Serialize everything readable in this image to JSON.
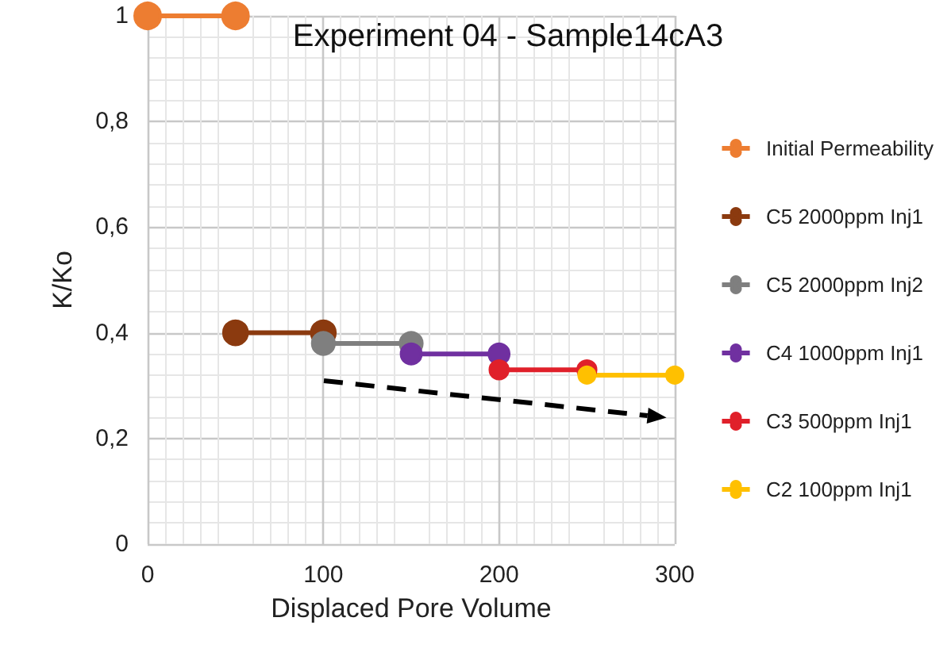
{
  "chart_data": {
    "type": "line",
    "title": "Experiment 04 - Sample14cA3",
    "xlabel": "Displaced Pore Volume",
    "ylabel": "K/Ko",
    "series": [
      {
        "name": "Initial Permeability",
        "color": "#ed7d31",
        "x": [
          0,
          50
        ],
        "values": [
          1,
          1
        ]
      },
      {
        "name": "C5 2000ppm Inj1",
        "color": "#8b3a0f",
        "x": [
          50,
          100
        ],
        "values": [
          0.4,
          0.4
        ]
      },
      {
        "name": "C5 2000ppm Inj2",
        "color": "#7f7f7f",
        "x": [
          100,
          150
        ],
        "values": [
          0.38,
          0.38
        ]
      },
      {
        "name": "C4 1000ppm Inj1",
        "color": "#7030a0",
        "x": [
          150,
          200
        ],
        "values": [
          0.36,
          0.36
        ]
      },
      {
        "name": "C3 500ppm Inj1",
        "color": "#e0202a",
        "x": [
          200,
          250
        ],
        "values": [
          0.33,
          0.33
        ]
      },
      {
        "name": "C2 100ppm Inj1",
        "color": "#ffc000",
        "x": [
          250,
          300
        ],
        "values": [
          0.32,
          0.32
        ]
      }
    ],
    "xlim": [
      0,
      300
    ],
    "xticks": [
      0,
      100,
      200,
      300
    ],
    "ylim": [
      0,
      1
    ],
    "yticks": [
      0,
      {
        "value": 0.2,
        "label": "0,2"
      },
      {
        "value": 0.4,
        "label": "0,4"
      },
      {
        "value": 0.6,
        "label": "0,6"
      },
      {
        "value": 0.8,
        "label": "0,8"
      },
      1
    ],
    "grid": true,
    "legend": "right",
    "marker": "circle",
    "line_style": "solid"
  }
}
